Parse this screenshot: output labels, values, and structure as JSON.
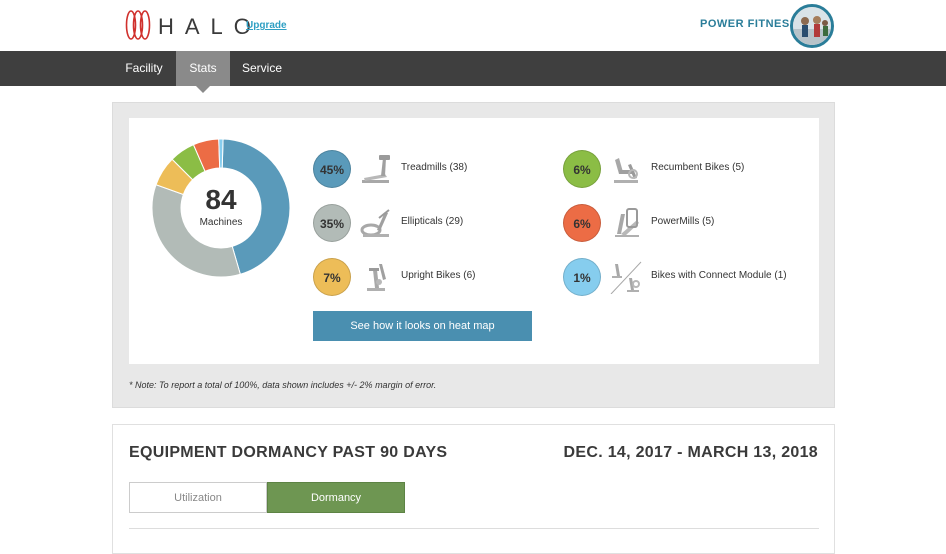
{
  "header": {
    "logo_text": "HALO",
    "upgrade_label": "Upgrade",
    "org_name": "POWER FITNESS"
  },
  "nav": {
    "tabs": [
      {
        "label": "Facility",
        "active": false
      },
      {
        "label": "Stats",
        "active": true
      },
      {
        "label": "Service",
        "active": false
      }
    ]
  },
  "stats": {
    "total": "84",
    "total_label": "Machines",
    "button_label": "See how it looks on heat map",
    "note": "* Note: To report a total of 100%, data shown includes +/- 2% margin of error."
  },
  "chart_data": {
    "type": "pie",
    "categories": [
      "Treadmills",
      "Ellipticals",
      "Upright Bikes",
      "Recumbent Bikes",
      "PowerMills",
      "Bikes with Connect Module"
    ],
    "values": [
      45,
      35,
      7,
      6,
      6,
      1
    ],
    "counts": [
      38,
      29,
      6,
      5,
      5,
      1
    ],
    "colors": [
      "#5a9aba",
      "#b2bbb7",
      "#edbd58",
      "#8bbd45",
      "#ec6c45",
      "#86cdee"
    ],
    "labels": [
      "45%",
      "35%",
      "7%",
      "6%",
      "6%",
      "1%"
    ],
    "legend_labels": [
      "Treadmills (38)",
      "Ellipticals (29)",
      "Upright Bikes (6)",
      "Recumbent Bikes (5)",
      "PowerMills (5)",
      "Bikes with Connect Module (1)"
    ],
    "center_value": "84",
    "center_label": "Machines"
  },
  "dormancy": {
    "title": "EQUIPMENT DORMANCY PAST 90 DAYS",
    "date_range": "DEC. 14, 2017 - MARCH 13, 2018",
    "tabs": [
      {
        "label": "Utilization",
        "active": false
      },
      {
        "label": "Dormancy",
        "active": true
      }
    ]
  }
}
